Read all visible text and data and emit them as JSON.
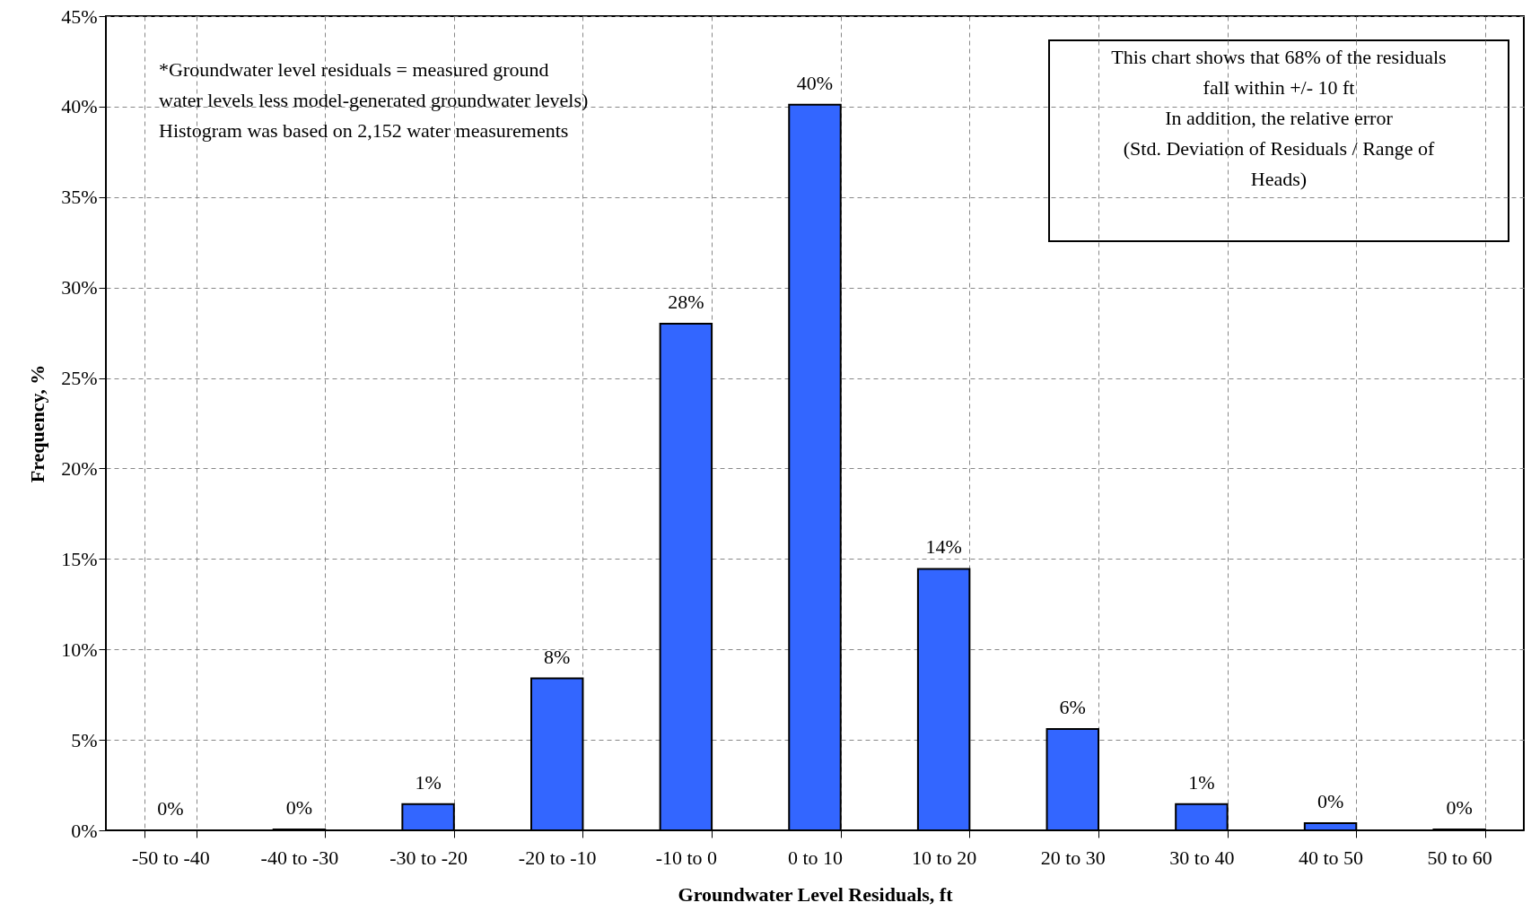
{
  "chart_data": {
    "type": "bar",
    "xlabel": "Groundwater Level Residuals, ft",
    "ylabel": "Frequency, %",
    "categories": [
      "-50 to -40",
      "-40 to -30",
      "-30 to -20",
      "-20 to -10",
      "-10 to 0",
      "0 to 10",
      "10 to 20",
      "20 to 30",
      "30 to 40",
      "40 to 50",
      "50 to 60"
    ],
    "values": [
      0,
      0.05,
      1.45,
      8.4,
      28,
      40.1,
      14.45,
      5.6,
      1.45,
      0.4,
      0.05
    ],
    "value_labels": [
      "0%",
      "0%",
      "1%",
      "8%",
      "28%",
      "40%",
      "14%",
      "6%",
      "1%",
      "0%",
      "0%"
    ],
    "color": "#3366ff",
    "ylim": [
      0,
      45
    ],
    "yticks": [
      {
        "value": 0,
        "label": "0%"
      },
      {
        "value": 5,
        "label": "5%"
      },
      {
        "value": 10,
        "label": "10%"
      },
      {
        "value": 15,
        "label": "15%"
      },
      {
        "value": 20,
        "label": "20%"
      },
      {
        "value": 25,
        "label": "25%"
      },
      {
        "value": 30,
        "label": "30%"
      },
      {
        "value": 35,
        "label": "35%"
      },
      {
        "value": 40,
        "label": "40%"
      },
      {
        "value": 45,
        "label": "45%"
      }
    ],
    "grid": true,
    "annotations": [
      "*Groundwater level residuals = measured ground\nwater levels less model-generated groundwater levels)\nHistogram was based on 2,152 water measurements",
      "This chart shows that 68% of the residuals\nfall within +/- 10 ft\n\nIn addition, the relative error\n (Std. Deviation of Residuals / Range of\nHeads)"
    ]
  }
}
